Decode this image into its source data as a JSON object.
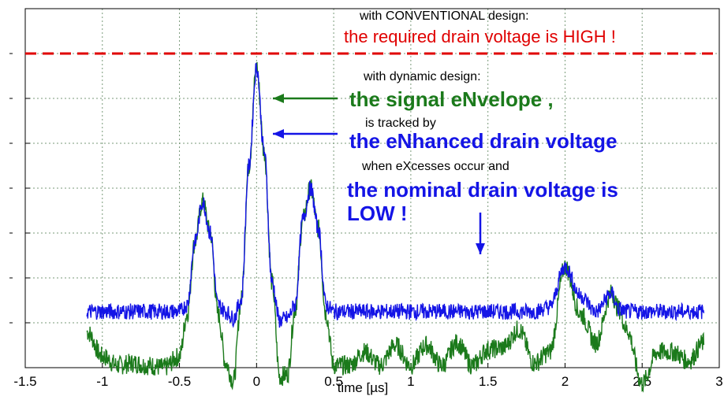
{
  "chart_data": {
    "type": "line",
    "title": "",
    "xlabel": "time [µs]",
    "ylabel": "",
    "xlim": [
      -1.5,
      3.0
    ],
    "ylim": [
      0,
      8
    ],
    "x_ticks": [
      "-1.5",
      "-1",
      "-0.5",
      "0",
      "0.5",
      "1",
      "1.5",
      "2",
      "2.5",
      "3"
    ],
    "y_tick_positions": [
      1,
      2,
      3,
      4,
      5,
      6,
      7
    ],
    "grid": true,
    "colors": {
      "envelope": "#1b7a1b",
      "drain": "#1414e6",
      "conventional": "#e00000",
      "grid": "#7a9a7a",
      "axis": "#000000"
    },
    "conventional_level": 7.0,
    "series": [
      {
        "name": "",
        "color": "#1b7a1b",
        "x": [
          -1.1,
          -1.0,
          -0.9,
          -0.8,
          -0.7,
          -0.6,
          -0.5,
          -0.45,
          -0.4,
          -0.35,
          -0.3,
          -0.25,
          -0.2,
          -0.15,
          -0.1,
          -0.05,
          0.0,
          0.05,
          0.1,
          0.15,
          0.2,
          0.25,
          0.3,
          0.35,
          0.4,
          0.45,
          0.5,
          0.6,
          0.7,
          0.8,
          0.9,
          1.0,
          1.1,
          1.2,
          1.3,
          1.4,
          1.5,
          1.6,
          1.7,
          1.8,
          1.9,
          2.0,
          2.1,
          2.2,
          2.3,
          2.35,
          2.4,
          2.5,
          2.6,
          2.7,
          2.8,
          2.9
        ],
        "y": [
          0.8,
          0.25,
          0.05,
          0.1,
          0.05,
          0.0,
          0.25,
          1.2,
          2.8,
          3.7,
          3.0,
          1.2,
          0.1,
          -0.3,
          1.5,
          4.5,
          6.7,
          4.8,
          1.9,
          -0.2,
          -0.15,
          1.3,
          3.3,
          4.0,
          3.1,
          1.2,
          0.05,
          0.05,
          0.35,
          0.05,
          0.5,
          0.05,
          0.5,
          0.05,
          0.55,
          0.05,
          0.4,
          0.45,
          0.85,
          0.1,
          0.35,
          2.25,
          1.2,
          0.55,
          1.65,
          1.3,
          0.85,
          -0.35,
          0.35,
          0.35,
          0.15,
          0.55
        ]
      },
      {
        "name": "",
        "color": "#1414e6",
        "x": [
          -1.1,
          -0.6,
          -0.5,
          -0.45,
          -0.4,
          -0.35,
          -0.3,
          -0.25,
          -0.2,
          -0.15,
          -0.1,
          -0.05,
          0.0,
          0.05,
          0.1,
          0.15,
          0.2,
          0.25,
          0.3,
          0.35,
          0.4,
          0.45,
          0.5,
          1.0,
          1.5,
          1.8,
          1.9,
          2.0,
          2.1,
          2.2,
          2.3,
          2.35,
          2.4,
          2.5,
          2.9
        ],
        "y": [
          1.25,
          1.25,
          1.25,
          1.4,
          2.8,
          3.7,
          3.0,
          1.4,
          1.25,
          1.1,
          1.5,
          4.5,
          6.7,
          4.8,
          1.9,
          1.05,
          1.1,
          1.4,
          3.3,
          4.0,
          3.1,
          1.4,
          1.25,
          1.25,
          1.25,
          1.25,
          1.35,
          2.25,
          1.6,
          1.25,
          1.65,
          1.3,
          1.25,
          1.25,
          1.25
        ]
      }
    ],
    "annotations": [
      {
        "text": "with CONVENTIONAL design:",
        "color": "#000000",
        "size": 16
      },
      {
        "text": "the required drain voltage is HIGH !",
        "color": "#e00000",
        "size": 22
      },
      {
        "text": "with dynamic design:",
        "color": "#000000",
        "size": 16
      },
      {
        "text": "the signal eNvelope ,",
        "color": "#1b7a1b",
        "size": 26
      },
      {
        "text": "is tracked by",
        "color": "#000000",
        "size": 16
      },
      {
        "text": "the eNhanced drain voltage",
        "color": "#1414e6",
        "size": 26
      },
      {
        "text": "when eXcesses occur and",
        "color": "#000000",
        "size": 16
      },
      {
        "text": "the nominal drain voltage is",
        "color": "#1414e6",
        "size": 26
      },
      {
        "text": "LOW !",
        "color": "#1414e6",
        "size": 26
      }
    ]
  }
}
